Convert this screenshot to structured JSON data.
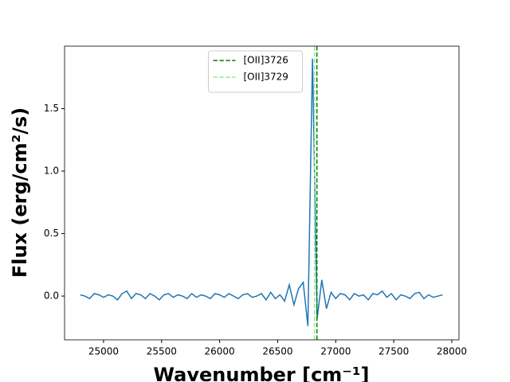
{
  "chart_data": {
    "type": "line",
    "xlabel": "Wavenumber [cm⁻¹]",
    "ylabel": "Flux (erg/cm²/s)",
    "x": [
      24800,
      24840,
      24880,
      24920,
      24960,
      25000,
      25040,
      25080,
      25120,
      25160,
      25200,
      25240,
      25280,
      25320,
      25360,
      25400,
      25440,
      25480,
      25520,
      25560,
      25600,
      25640,
      25680,
      25720,
      25760,
      25800,
      25840,
      25880,
      25920,
      25960,
      26000,
      26040,
      26080,
      26120,
      26160,
      26200,
      26240,
      26280,
      26320,
      26360,
      26400,
      26440,
      26480,
      26520,
      26560,
      26600,
      26640,
      26680,
      26720,
      26760,
      26800,
      26840,
      26880,
      26920,
      26960,
      27000,
      27040,
      27080,
      27120,
      27160,
      27200,
      27240,
      27280,
      27320,
      27360,
      27400,
      27440,
      27480,
      27520,
      27560,
      27600,
      27640,
      27680,
      27720,
      27760,
      27800,
      27840,
      27880,
      27920
    ],
    "series": [
      {
        "color": "#1f77b4",
        "values": [
          0.01,
          0.0,
          -0.02,
          0.02,
          0.01,
          -0.01,
          0.01,
          0.0,
          -0.03,
          0.02,
          0.04,
          -0.02,
          0.02,
          0.01,
          -0.02,
          0.02,
          0.0,
          -0.03,
          0.01,
          0.02,
          -0.01,
          0.01,
          0.0,
          -0.02,
          0.02,
          -0.01,
          0.01,
          0.0,
          -0.02,
          0.02,
          0.01,
          -0.01,
          0.02,
          0.0,
          -0.02,
          0.01,
          0.02,
          -0.01,
          0.0,
          0.02,
          -0.03,
          0.03,
          -0.02,
          0.01,
          -0.04,
          0.09,
          -0.07,
          0.06,
          0.11,
          -0.24,
          1.9,
          -0.18,
          0.13,
          -0.1,
          0.03,
          -0.02,
          0.02,
          0.01,
          -0.03,
          0.02,
          0.0,
          0.01,
          -0.03,
          0.02,
          0.01,
          0.04,
          -0.01,
          0.02,
          -0.03,
          0.01,
          0.0,
          -0.02,
          0.02,
          0.03,
          -0.02,
          0.01,
          -0.01,
          0.0,
          0.01
        ]
      }
    ],
    "vlines": [
      {
        "name": "[OII]3726",
        "x": 26838,
        "color": "#008000"
      },
      {
        "name": "[OII]3729",
        "x": 26817,
        "color": "#90ee90"
      }
    ],
    "xlim": [
      24664,
      28062
    ],
    "ylim": [
      -0.35,
      2.0
    ],
    "xticks": [
      25000,
      25500,
      26000,
      26500,
      27000,
      27500,
      28000
    ],
    "yticks": [
      {
        "value": 0,
        "label": "0.0"
      },
      {
        "value": 0.5,
        "label": "0.5"
      },
      {
        "value": 1,
        "label": "1.0"
      },
      {
        "value": 1.5,
        "label": "1.5"
      }
    ],
    "legend": "upper center"
  }
}
